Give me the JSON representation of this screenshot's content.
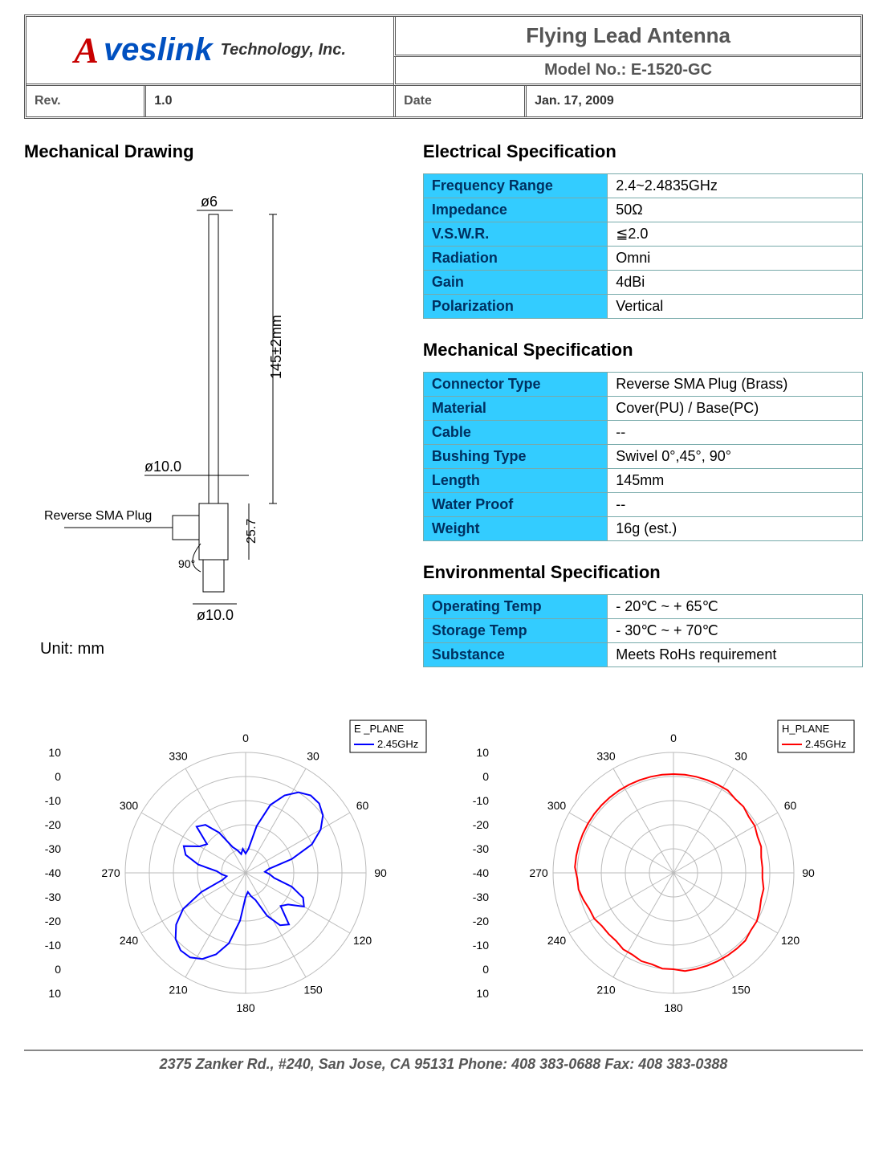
{
  "header": {
    "logo_a": "A",
    "logo_rest": "veslink",
    "logo_tag": "Technology, Inc.",
    "title": "Flying Lead Antenna",
    "model_label": "Model No.:  E-1520-GC",
    "rev_label": "Rev.",
    "rev_value": "1.0",
    "date_label": "Date",
    "date_value": "Jan. 17, 2009"
  },
  "mechanical_drawing_title": "Mechanical Drawing",
  "drawing": {
    "phi6": "ø6",
    "phi10a": "ø10.0",
    "phi10b": "ø10.0",
    "len145": "145±2mm",
    "h257": "25.7",
    "ang90": "90°",
    "plug_label": "Reverse SMA Plug",
    "unit": "Unit: mm"
  },
  "electrical": {
    "title": "Electrical Specification",
    "rows": [
      {
        "k": "Frequency Range",
        "v": "2.4~2.4835GHz"
      },
      {
        "k": "Impedance",
        "v": "50Ω"
      },
      {
        "k": "V.S.W.R.",
        "v": "≦2.0"
      },
      {
        "k": "Radiation",
        "v": "Omni"
      },
      {
        "k": "Gain",
        "v": "4dBi"
      },
      {
        "k": "Polarization",
        "v": "Vertical"
      }
    ]
  },
  "mechanical": {
    "title": "Mechanical Specification",
    "rows": [
      {
        "k": "Connector Type",
        "v": "Reverse SMA Plug (Brass)"
      },
      {
        "k": "Material",
        "v": "Cover(PU) / Base(PC)"
      },
      {
        "k": "Cable",
        "v": "--"
      },
      {
        "k": "Bushing Type",
        "v": "Swivel  0°,45°, 90°"
      },
      {
        "k": "Length",
        "v": "145mm"
      },
      {
        "k": "Water Proof",
        "v": "--"
      },
      {
        "k": "Weight",
        "v": "16g (est.)"
      }
    ]
  },
  "environmental": {
    "title": "Environmental Specification",
    "rows": [
      {
        "k": "Operating Temp",
        "v": "- 20℃ ~ + 65℃"
      },
      {
        "k": "Storage Temp",
        "v": "- 30℃ ~ + 70℃"
      },
      {
        "k": "Substance",
        "v": "Meets RoHs requirement"
      }
    ]
  },
  "polar": {
    "angle_labels": [
      "0",
      "30",
      "60",
      "90",
      "120",
      "150",
      "180",
      "210",
      "240",
      "270",
      "300",
      "330"
    ],
    "axis_labels": [
      "10",
      "0",
      "-10",
      "-20",
      "-30",
      "-40",
      "-30",
      "-20",
      "-10",
      "0",
      "10"
    ],
    "rings": 5,
    "spokes": 12,
    "grid_color": "#bbbbbb",
    "text_color": "#000000",
    "text_size": 14,
    "e_plane": {
      "title": "E _PLANE",
      "legend": "2.45GHz",
      "color": "#0000ff",
      "width": 2,
      "data_db": [
        -32,
        -30,
        -20,
        -10,
        -4,
        0,
        2,
        2,
        0,
        -4,
        -10,
        -20,
        -30,
        -32,
        -30,
        -28,
        -20,
        -14,
        -12,
        -18,
        -20,
        -12,
        -14,
        -20,
        -28,
        -30,
        -32,
        -30,
        -20,
        -10,
        -4,
        0,
        2,
        2,
        0,
        -4,
        -10,
        -20,
        -30,
        -32,
        -30,
        -28,
        -20,
        -14,
        -12,
        -18,
        -20,
        -12,
        -14,
        -20,
        -28,
        -30,
        -32,
        -30
      ]
    },
    "h_plane": {
      "title": "H_PLANE",
      "legend": "2.45GHz",
      "color": "#ff0000",
      "width": 2,
      "data_db": [
        1,
        1,
        1,
        1,
        1,
        1,
        0,
        0,
        -1,
        -1,
        -2,
        -2,
        -3,
        -3,
        -3,
        -2,
        -2,
        -1,
        0,
        0,
        1,
        1,
        1,
        1,
        1,
        1,
        1,
        0,
        0,
        -1,
        -1,
        -2,
        -2,
        -3,
        -3,
        -3,
        -2,
        -2,
        -1,
        0,
        0,
        1,
        1,
        1,
        1,
        1,
        1,
        1,
        1,
        1,
        1,
        1,
        1,
        1
      ]
    }
  },
  "footer": "2375 Zanker Rd., #240, San Jose, CA 95131  Phone: 408 383-0688 Fax: 408 383-0388"
}
